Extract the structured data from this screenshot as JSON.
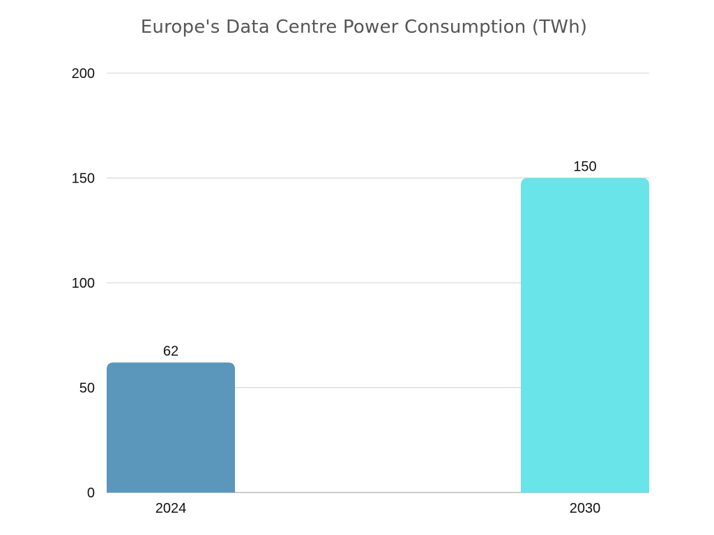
{
  "chart_data": {
    "type": "bar",
    "title": "Europe's Data Centre Power Consumption (TWh)",
    "xlabel": "",
    "ylabel": "",
    "categories": [
      "2024",
      "2030"
    ],
    "values": [
      62,
      150
    ],
    "bar_colors": [
      "#5a97bb",
      "#69e4e8"
    ],
    "ylim": [
      0,
      200
    ],
    "yticks": [
      0,
      50,
      100,
      150,
      200
    ],
    "grid": true,
    "legend": "none"
  }
}
